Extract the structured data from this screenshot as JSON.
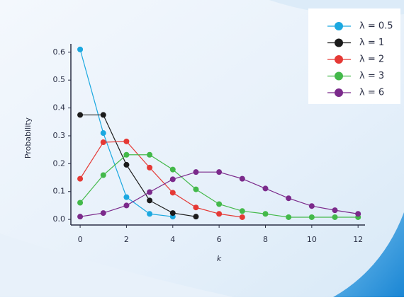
{
  "chart_data": {
    "type": "line",
    "x": [
      0,
      1,
      2,
      3,
      4,
      5,
      6,
      7,
      8,
      9,
      10,
      11,
      12
    ],
    "xlabel": "k",
    "ylabel": "Probability",
    "xlim": [
      -0.4,
      12.3
    ],
    "xticks": [
      0,
      2,
      4,
      6,
      8,
      10,
      12
    ],
    "ylim": [
      -0.02,
      0.63
    ],
    "yticks": [
      {
        "value": 0,
        "label": "0.0"
      },
      0.1,
      0.2,
      0.3,
      0.4,
      0.5,
      0.6
    ],
    "legend": "upper right",
    "series": [
      {
        "name": "λ = 0.5",
        "color": "#1ba8e0",
        "values": [
          0.61,
          0.31,
          0.08,
          0.02,
          0.01,
          null,
          null,
          null,
          null,
          null,
          null,
          null,
          null
        ]
      },
      {
        "name": "λ = 1",
        "color": "#1b1b1b",
        "values": [
          0.375,
          0.375,
          0.196,
          0.068,
          0.023,
          0.01,
          null,
          null,
          null,
          null,
          null,
          null,
          null
        ]
      },
      {
        "name": "λ = 2",
        "color": "#e53935",
        "values": [
          0.146,
          0.277,
          0.28,
          0.186,
          0.096,
          0.043,
          0.02,
          0.008,
          null,
          null,
          null,
          null,
          null
        ]
      },
      {
        "name": "λ = 3",
        "color": "#43b94a",
        "values": [
          0.06,
          0.159,
          0.232,
          0.232,
          0.179,
          0.108,
          0.055,
          0.03,
          0.02,
          0.008,
          0.008,
          0.008,
          0.008
        ]
      },
      {
        "name": "λ = 6",
        "color": "#7b2a8b",
        "values": [
          0.01,
          0.023,
          0.05,
          0.098,
          0.144,
          0.17,
          0.17,
          0.146,
          0.111,
          0.076,
          0.048,
          0.033,
          0.02
        ]
      }
    ]
  }
}
